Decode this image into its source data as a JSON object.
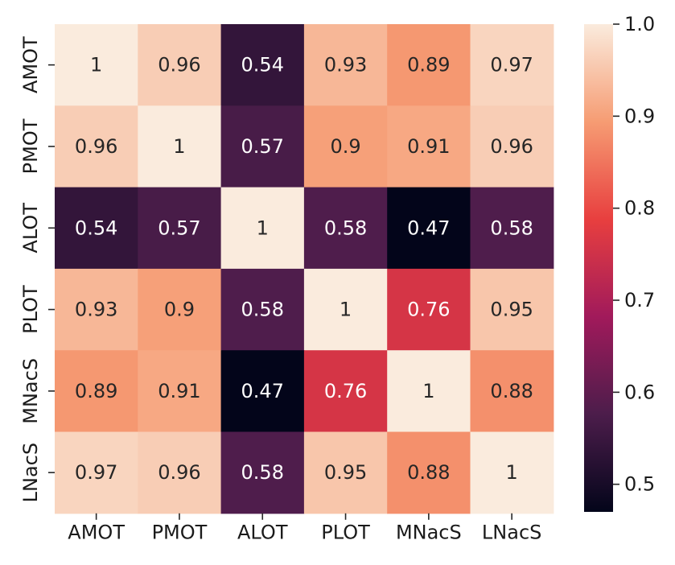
{
  "chart_data": {
    "type": "heatmap",
    "title": "",
    "xlabel": "",
    "ylabel": "",
    "x_categories": [
      "AMOT",
      "PMOT",
      "ALOT",
      "PLOT",
      "MNacS",
      "LNacS"
    ],
    "y_categories": [
      "AMOT",
      "PMOT",
      "ALOT",
      "PLOT",
      "MNacS",
      "LNacS"
    ],
    "values": [
      [
        1,
        0.96,
        0.54,
        0.93,
        0.89,
        0.97
      ],
      [
        0.96,
        1,
        0.57,
        0.9,
        0.91,
        0.96
      ],
      [
        0.54,
        0.57,
        1,
        0.58,
        0.47,
        0.58
      ],
      [
        0.93,
        0.9,
        0.58,
        1,
        0.76,
        0.95
      ],
      [
        0.89,
        0.91,
        0.47,
        0.76,
        1,
        0.88
      ],
      [
        0.97,
        0.96,
        0.58,
        0.95,
        0.88,
        1
      ]
    ],
    "colorbar": {
      "min": 0.47,
      "max": 1.0,
      "ticks": [
        0.5,
        0.6,
        0.7,
        0.8,
        0.9,
        1.0
      ],
      "tick_labels": [
        "0.5",
        "0.6",
        "0.7",
        "0.8",
        "0.9",
        "1.0"
      ],
      "colormap": "rocket",
      "stops": [
        "#03051a",
        "#4c1d4b",
        "#a11a5b",
        "#e83f3f",
        "#f69c73",
        "#faebdd"
      ]
    },
    "grid": false
  }
}
